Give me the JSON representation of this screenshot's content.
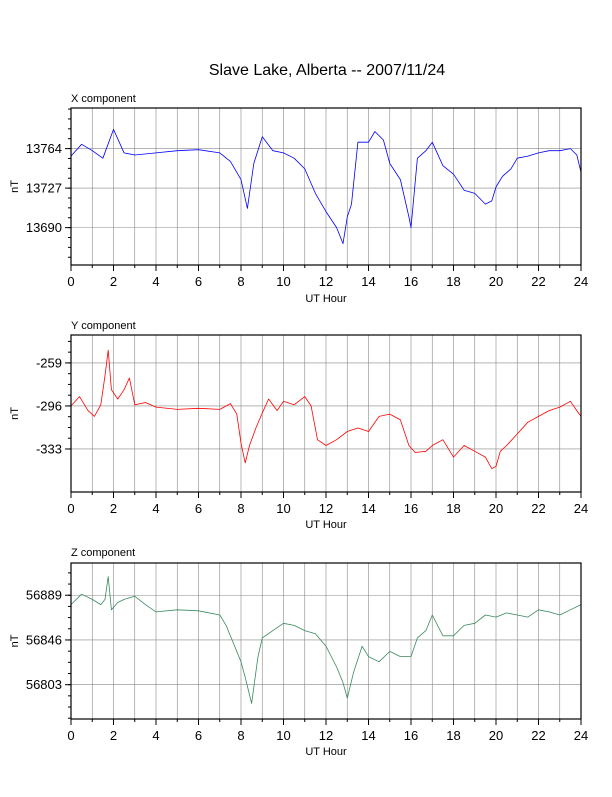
{
  "title": "Slave Lake, Alberta -- 2007/11/24",
  "chart_data": [
    {
      "type": "line",
      "title": "X component",
      "xlabel": "UT Hour",
      "ylabel": "nT",
      "xlim": [
        0,
        24
      ],
      "ylim": [
        13655,
        13802
      ],
      "xticks": [
        0,
        2,
        4,
        6,
        8,
        10,
        12,
        14,
        16,
        18,
        20,
        22,
        24
      ],
      "yticks": [
        13690,
        13727,
        13764
      ],
      "grid": true,
      "color": "#0000ff",
      "x": [
        0,
        0.5,
        1,
        1.5,
        2,
        2.5,
        3,
        4,
        5,
        6,
        7,
        7.5,
        8,
        8.3,
        8.6,
        9,
        9.5,
        10,
        10.5,
        11,
        11.5,
        12,
        12.5,
        12.8,
        13,
        13.2,
        13.5,
        14,
        14.3,
        14.7,
        15,
        15.5,
        15.9,
        16,
        16.3,
        16.7,
        17,
        17.5,
        18,
        18.5,
        19,
        19.5,
        19.8,
        20,
        20.3,
        20.7,
        21,
        21.5,
        22,
        22.5,
        23,
        23.5,
        23.8,
        24
      ],
      "y": [
        13757,
        13768,
        13762,
        13755,
        13782,
        13760,
        13758,
        13760,
        13762,
        13763,
        13760,
        13752,
        13735,
        13708,
        13750,
        13775,
        13762,
        13760,
        13755,
        13745,
        13722,
        13705,
        13690,
        13675,
        13700,
        13712,
        13770,
        13770,
        13780,
        13772,
        13750,
        13735,
        13700,
        13690,
        13755,
        13762,
        13770,
        13748,
        13740,
        13725,
        13722,
        13712,
        13715,
        13728,
        13738,
        13745,
        13755,
        13757,
        13760,
        13762,
        13762,
        13764,
        13758,
        13742
      ]
    },
    {
      "type": "line",
      "title": "Y component",
      "xlabel": "UT Hour",
      "ylabel": "nT",
      "xlim": [
        0,
        24
      ],
      "ylim": [
        -370,
        -235
      ],
      "xticks": [
        0,
        2,
        4,
        6,
        8,
        10,
        12,
        14,
        16,
        18,
        20,
        22,
        24
      ],
      "yticks": [
        -259,
        -296,
        -333
      ],
      "grid": true,
      "color": "#ff0000",
      "x": [
        0,
        0.4,
        0.8,
        1.1,
        1.4,
        1.6,
        1.75,
        1.9,
        2.2,
        2.5,
        2.75,
        3,
        3.5,
        4,
        5,
        6,
        7,
        7.5,
        7.8,
        8,
        8.2,
        8.4,
        8.7,
        9,
        9.3,
        9.7,
        10,
        10.5,
        11,
        11.3,
        11.6,
        12,
        12.5,
        13,
        13.5,
        14,
        14.5,
        15,
        15.5,
        15.9,
        16.2,
        16.7,
        17,
        17.5,
        18,
        18.5,
        19,
        19.5,
        19.8,
        20,
        20.2,
        20.5,
        21,
        21.5,
        22,
        22.5,
        23,
        23.5,
        23.8,
        24
      ],
      "y": [
        -296,
        -288,
        -300,
        -305,
        -295,
        -270,
        -248,
        -282,
        -290,
        -282,
        -272,
        -295,
        -293,
        -297,
        -299,
        -298,
        -299,
        -294,
        -303,
        -328,
        -345,
        -330,
        -315,
        -302,
        -290,
        -300,
        -292,
        -295,
        -288,
        -296,
        -325,
        -330,
        -325,
        -318,
        -315,
        -318,
        -305,
        -303,
        -308,
        -330,
        -336,
        -335,
        -330,
        -325,
        -340,
        -330,
        -335,
        -340,
        -350,
        -348,
        -335,
        -330,
        -320,
        -310,
        -305,
        -300,
        -297,
        -292,
        -300,
        -305
      ]
    },
    {
      "type": "line",
      "title": "Z component",
      "xlabel": "UT Hour",
      "ylabel": "nT",
      "xlim": [
        0,
        24
      ],
      "ylim": [
        56770,
        56920
      ],
      "xticks": [
        0,
        2,
        4,
        6,
        8,
        10,
        12,
        14,
        16,
        18,
        20,
        22,
        24
      ],
      "yticks": [
        56803,
        56846,
        56889
      ],
      "grid": true,
      "color": "#3a8a5c",
      "x": [
        0,
        0.5,
        1,
        1.4,
        1.6,
        1.75,
        1.9,
        2.2,
        2.5,
        3,
        3.5,
        4,
        5,
        6,
        7,
        7.3,
        7.6,
        8,
        8.2,
        8.5,
        8.8,
        9,
        9.5,
        10,
        10.5,
        11,
        11.5,
        12,
        12.5,
        12.8,
        13,
        13.3,
        13.7,
        14,
        14.5,
        15,
        15.5,
        16,
        16.3,
        16.7,
        17,
        17.5,
        18,
        18.5,
        19,
        19.5,
        20,
        20.5,
        21,
        21.5,
        22,
        22.5,
        23,
        23.5,
        24
      ],
      "y": [
        56880,
        56890,
        56885,
        56880,
        56885,
        56907,
        56875,
        56882,
        56885,
        56888,
        56880,
        56873,
        56875,
        56874,
        56870,
        56860,
        56845,
        56825,
        56810,
        56785,
        56830,
        56848,
        56855,
        56862,
        56860,
        56855,
        56852,
        56840,
        56820,
        56805,
        56790,
        56815,
        56840,
        56830,
        56825,
        56835,
        56830,
        56830,
        56848,
        56855,
        56870,
        56850,
        56850,
        56860,
        56862,
        56870,
        56868,
        56872,
        56870,
        56868,
        56875,
        56873,
        56870,
        56875,
        56880
      ]
    }
  ]
}
